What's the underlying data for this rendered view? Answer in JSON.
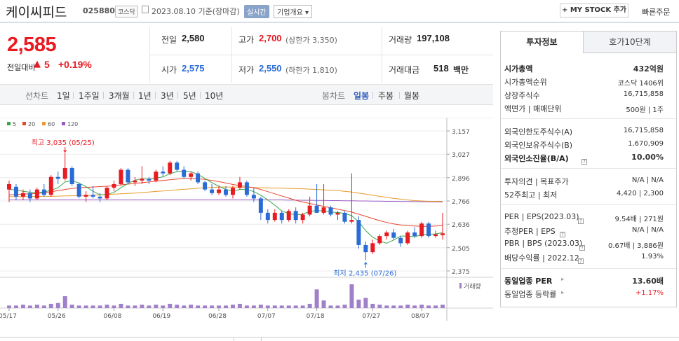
{
  "header": {
    "name": "케이씨피드",
    "code": "025880",
    "market_tag": "코스닥",
    "date_text": "2023.08.10  기준(장마감)",
    "live_label": "실시간",
    "info_label": "기업개요 ▾",
    "mystock_label": "+ MY STOCK 추가",
    "quick_order": "빠른주문"
  },
  "price": {
    "current": "2,585",
    "change_label": "전일대비",
    "change_arrow": "▲",
    "change": "5",
    "change_pct": "+0.19%"
  },
  "stats": {
    "prev_close_label": "전일",
    "prev_close": "2,580",
    "high_label": "고가",
    "high": "2,700",
    "upper_limit": "(상한가 3,350)",
    "volume_label": "거래량",
    "volume": "197,108",
    "open_label": "시가",
    "open": "2,575",
    "low_label": "저가",
    "low": "2,550",
    "lower_limit": "(하한가 1,810)",
    "amount_label": "거래대금",
    "amount": "518",
    "amount_unit": "백만"
  },
  "chart_tabs": {
    "line_label": "선차트",
    "line_items": [
      "1일",
      "1주일",
      "3개월",
      "1년",
      "3년",
      "5년",
      "10년"
    ],
    "candle_label": "봉차트",
    "candle_items": [
      "일봉",
      "주봉",
      "월봉"
    ],
    "active": "일봉"
  },
  "right_panel": {
    "tab_active": "투자정보",
    "tab_other": "호가10단계",
    "sections": {
      "market_cap_label": "시가총액",
      "market_cap": "432억원",
      "rank_label": "시가총액순위",
      "rank": "코스닥 1406위",
      "shares_label": "상장주식수",
      "shares": "16,715,858",
      "par_label": "액면가 | 매매단위",
      "par": "500원 | 1주",
      "foreign_limit_label": "외국인한도주식수(A)",
      "foreign_limit": "16,715,858",
      "foreign_hold_label": "외국인보유주식수(B)",
      "foreign_hold": "1,670,909",
      "foreign_ratio_label": "외국인소진율(B/A)",
      "foreign_ratio": "10.00%",
      "opinion_label": "투자의견 | 목표주가",
      "opinion": "N/A | N/A",
      "week52_label": "52주최고 | 최저",
      "week52": "4,420 | 2,300",
      "per_label": "PER | EPS(2023.03)",
      "per": "9.54배 | 271원",
      "est_per_label": "추정PER | EPS",
      "est_per": "N/A | N/A",
      "pbr_label": "PBR | BPS (2023.03)",
      "pbr": "0.67배 | 3,886원",
      "div_label": "배당수익률 | 2022.12",
      "div": "1.93%",
      "ind_per_label": "동일업종 PER",
      "ind_per": "13.60배",
      "ind_chg_label": "동일업종 등락률",
      "ind_chg": "+1.17%"
    }
  },
  "colors": {
    "up": "#e81b23",
    "down": "#2a6bd6",
    "ma5": "#3aa64a",
    "ma20": "#e8462c",
    "ma60": "#e89a2c",
    "ma120": "#9b59c6"
  },
  "chart_data": {
    "type": "candlestick",
    "legend": [
      "5",
      "20",
      "60",
      "120"
    ],
    "y_ticks": [
      3157,
      3027,
      2896,
      2766,
      2636,
      2505,
      2375
    ],
    "ylim": [
      2375,
      3157
    ],
    "x_ticks": [
      "05/17",
      "05/26",
      "06/08",
      "06/19",
      "06/28",
      "07/07",
      "07/18",
      "07/27",
      "08/07"
    ],
    "high_annot": "최고 3,035 (05/25)",
    "low_annot": "최저 2,435 (07/26)",
    "volume_label": "거래량",
    "candles": [
      {
        "o": 2830,
        "h": 2880,
        "l": 2760,
        "c": 2860
      },
      {
        "o": 2845,
        "h": 2860,
        "l": 2770,
        "c": 2790
      },
      {
        "o": 2790,
        "h": 2830,
        "l": 2770,
        "c": 2810
      },
      {
        "o": 2810,
        "h": 2830,
        "l": 2760,
        "c": 2780
      },
      {
        "o": 2780,
        "h": 2840,
        "l": 2770,
        "c": 2830
      },
      {
        "o": 2830,
        "h": 2860,
        "l": 2790,
        "c": 2800
      },
      {
        "o": 2800,
        "h": 2910,
        "l": 2790,
        "c": 2900
      },
      {
        "o": 2900,
        "h": 2930,
        "l": 2860,
        "c": 2890
      },
      {
        "o": 2890,
        "h": 3035,
        "l": 2880,
        "c": 2950
      },
      {
        "o": 2950,
        "h": 2960,
        "l": 2850,
        "c": 2860
      },
      {
        "o": 2860,
        "h": 2870,
        "l": 2780,
        "c": 2790
      },
      {
        "o": 2790,
        "h": 2820,
        "l": 2760,
        "c": 2800
      },
      {
        "o": 2800,
        "h": 2850,
        "l": 2780,
        "c": 2790
      },
      {
        "o": 2790,
        "h": 2810,
        "l": 2760,
        "c": 2780
      },
      {
        "o": 2780,
        "h": 2850,
        "l": 2770,
        "c": 2840
      },
      {
        "o": 2840,
        "h": 2880,
        "l": 2820,
        "c": 2860
      },
      {
        "o": 2860,
        "h": 2950,
        "l": 2850,
        "c": 2940
      },
      {
        "o": 2940,
        "h": 2950,
        "l": 2860,
        "c": 2870
      },
      {
        "o": 2870,
        "h": 2900,
        "l": 2850,
        "c": 2880
      },
      {
        "o": 2880,
        "h": 2960,
        "l": 2860,
        "c": 2890
      },
      {
        "o": 2890,
        "h": 2900,
        "l": 2860,
        "c": 2880
      },
      {
        "o": 2880,
        "h": 2940,
        "l": 2870,
        "c": 2930
      },
      {
        "o": 2930,
        "h": 2960,
        "l": 2900,
        "c": 2920
      },
      {
        "o": 2920,
        "h": 2990,
        "l": 2910,
        "c": 2980
      },
      {
        "o": 2980,
        "h": 2990,
        "l": 2930,
        "c": 2940
      },
      {
        "o": 2940,
        "h": 2960,
        "l": 2890,
        "c": 2900
      },
      {
        "o": 2900,
        "h": 2930,
        "l": 2880,
        "c": 2920
      },
      {
        "o": 2920,
        "h": 2930,
        "l": 2860,
        "c": 2870
      },
      {
        "o": 2870,
        "h": 2880,
        "l": 2820,
        "c": 2830
      },
      {
        "o": 2830,
        "h": 2860,
        "l": 2800,
        "c": 2810
      },
      {
        "o": 2810,
        "h": 2850,
        "l": 2800,
        "c": 2830
      },
      {
        "o": 2830,
        "h": 2850,
        "l": 2790,
        "c": 2800
      },
      {
        "o": 2800,
        "h": 2850,
        "l": 2780,
        "c": 2840
      },
      {
        "o": 2840,
        "h": 2900,
        "l": 2830,
        "c": 2870
      },
      {
        "o": 2870,
        "h": 2880,
        "l": 2790,
        "c": 2800
      },
      {
        "o": 2800,
        "h": 2840,
        "l": 2760,
        "c": 2780
      },
      {
        "o": 2780,
        "h": 2790,
        "l": 2660,
        "c": 2700
      },
      {
        "o": 2700,
        "h": 2720,
        "l": 2640,
        "c": 2660
      },
      {
        "o": 2660,
        "h": 2720,
        "l": 2650,
        "c": 2700
      },
      {
        "o": 2700,
        "h": 2710,
        "l": 2640,
        "c": 2660
      },
      {
        "o": 2660,
        "h": 2720,
        "l": 2650,
        "c": 2710
      },
      {
        "o": 2710,
        "h": 2730,
        "l": 2640,
        "c": 2660
      },
      {
        "o": 2660,
        "h": 2700,
        "l": 2640,
        "c": 2690
      },
      {
        "o": 2690,
        "h": 2790,
        "l": 2680,
        "c": 2740
      },
      {
        "o": 2740,
        "h": 2860,
        "l": 2700,
        "c": 2700
      },
      {
        "o": 2700,
        "h": 2860,
        "l": 2690,
        "c": 2730
      },
      {
        "o": 2730,
        "h": 2740,
        "l": 2680,
        "c": 2690
      },
      {
        "o": 2690,
        "h": 2710,
        "l": 2660,
        "c": 2700
      },
      {
        "o": 2700,
        "h": 2710,
        "l": 2640,
        "c": 2650
      },
      {
        "o": 2650,
        "h": 2920,
        "l": 2640,
        "c": 2660
      },
      {
        "o": 2660,
        "h": 2680,
        "l": 2500,
        "c": 2520
      },
      {
        "o": 2520,
        "h": 2540,
        "l": 2435,
        "c": 2480
      },
      {
        "o": 2480,
        "h": 2550,
        "l": 2470,
        "c": 2530
      },
      {
        "o": 2530,
        "h": 2580,
        "l": 2520,
        "c": 2570
      },
      {
        "o": 2570,
        "h": 2600,
        "l": 2550,
        "c": 2590
      },
      {
        "o": 2590,
        "h": 2610,
        "l": 2550,
        "c": 2560
      },
      {
        "o": 2560,
        "h": 2570,
        "l": 2510,
        "c": 2530
      },
      {
        "o": 2530,
        "h": 2600,
        "l": 2520,
        "c": 2590
      },
      {
        "o": 2590,
        "h": 2620,
        "l": 2560,
        "c": 2570
      },
      {
        "o": 2570,
        "h": 2650,
        "l": 2560,
        "c": 2640
      },
      {
        "o": 2640,
        "h": 2650,
        "l": 2560,
        "c": 2570
      },
      {
        "o": 2570,
        "h": 2600,
        "l": 2560,
        "c": 2580
      },
      {
        "o": 2575,
        "h": 2700,
        "l": 2550,
        "c": 2585
      }
    ],
    "volume": [
      3,
      3,
      4,
      3,
      4,
      3,
      5,
      6,
      14,
      4,
      3,
      3,
      3,
      3,
      4,
      3,
      5,
      3,
      3,
      4,
      3,
      4,
      3,
      5,
      4,
      3,
      4,
      3,
      3,
      3,
      3,
      3,
      4,
      5,
      3,
      3,
      4,
      3,
      3,
      3,
      3,
      3,
      3,
      5,
      22,
      9,
      3,
      3,
      4,
      28,
      10,
      12,
      5,
      4,
      3,
      3,
      3,
      4,
      3,
      4,
      3,
      3,
      4
    ],
    "ma5": [
      2830,
      2828,
      2820,
      2815,
      2812,
      2816,
      2826,
      2840,
      2872,
      2880,
      2866,
      2846,
      2820,
      2800,
      2802,
      2814,
      2840,
      2864,
      2882,
      2890,
      2888,
      2894,
      2900,
      2918,
      2930,
      2932,
      2930,
      2914,
      2892,
      2868,
      2848,
      2830,
      2822,
      2830,
      2830,
      2818,
      2798,
      2772,
      2742,
      2710,
      2696,
      2688,
      2692,
      2708,
      2712,
      2710,
      2704,
      2702,
      2696,
      2684,
      2650,
      2600,
      2564,
      2542,
      2530,
      2548,
      2570,
      2570,
      2566,
      2578,
      2580,
      2582,
      2589
    ],
    "ma20": [
      2800,
      2802,
      2804,
      2806,
      2808,
      2812,
      2818,
      2824,
      2830,
      2836,
      2840,
      2842,
      2844,
      2846,
      2848,
      2852,
      2856,
      2860,
      2864,
      2868,
      2872,
      2876,
      2880,
      2884,
      2888,
      2892,
      2892,
      2890,
      2886,
      2880,
      2874,
      2866,
      2858,
      2852,
      2846,
      2840,
      2830,
      2818,
      2806,
      2794,
      2782,
      2770,
      2760,
      2752,
      2744,
      2736,
      2728,
      2720,
      2712,
      2704,
      2692,
      2680,
      2668,
      2656,
      2646,
      2638,
      2632,
      2628,
      2626,
      2624,
      2624,
      2626,
      2628
    ],
    "ma60": [
      2790,
      2790,
      2790,
      2791,
      2791,
      2792,
      2792,
      2793,
      2794,
      2795,
      2796,
      2797,
      2798,
      2800,
      2802,
      2804,
      2806,
      2808,
      2810,
      2813,
      2816,
      2819,
      2822,
      2825,
      2828,
      2831,
      2834,
      2837,
      2840,
      2842,
      2843,
      2844,
      2844,
      2843,
      2842,
      2841,
      2840,
      2839,
      2838,
      2837,
      2836,
      2835,
      2834,
      2832,
      2830,
      2828,
      2826,
      2824,
      2820,
      2816,
      2810,
      2804,
      2798,
      2792,
      2786,
      2780,
      2776,
      2772,
      2768,
      2766,
      2764,
      2764,
      2764
    ],
    "ma120": [
      2772,
      2772,
      2772,
      2772,
      2772,
      2772,
      2772,
      2772,
      2772,
      2772,
      2772,
      2772,
      2772,
      2772,
      2772,
      2772,
      2772,
      2772,
      2772,
      2772,
      2772,
      2772,
      2772,
      2772,
      2772,
      2772,
      2772,
      2772,
      2772,
      2772,
      2772,
      2772,
      2772,
      2772,
      2772,
      2772,
      2772,
      2772,
      2772,
      2772,
      2771,
      2771,
      2770,
      2770,
      2769,
      2769,
      2768,
      2768,
      2767,
      2767,
      2766,
      2766,
      2765,
      2765,
      2764,
      2764,
      2763,
      2763,
      2762,
      2762,
      2761,
      2761,
      2760
    ]
  }
}
